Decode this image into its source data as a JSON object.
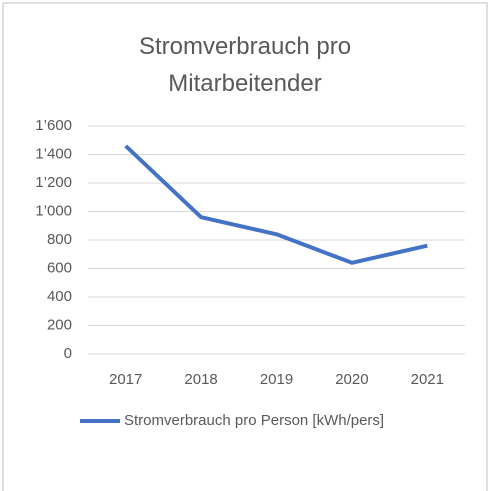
{
  "chart_data": {
    "type": "line",
    "title": "Stromverbrauch pro Mitarbeitender",
    "categories": [
      "2017",
      "2018",
      "2019",
      "2020",
      "2021"
    ],
    "series": [
      {
        "name": "Stromverbrauch pro Person [kWh/pers]",
        "color": "#4472c4",
        "values": [
          1460,
          960,
          840,
          640,
          760
        ]
      }
    ],
    "ylim": [
      0,
      1600
    ],
    "yticks": [
      0,
      200,
      400,
      600,
      800,
      {
        "value": 1000,
        "label": "1’000"
      },
      {
        "value": 1200,
        "label": "1’200"
      },
      {
        "value": 1400,
        "label": "1’400"
      },
      {
        "value": 1600,
        "label": "1’600"
      }
    ],
    "grid": true,
    "legend": "bottom"
  }
}
